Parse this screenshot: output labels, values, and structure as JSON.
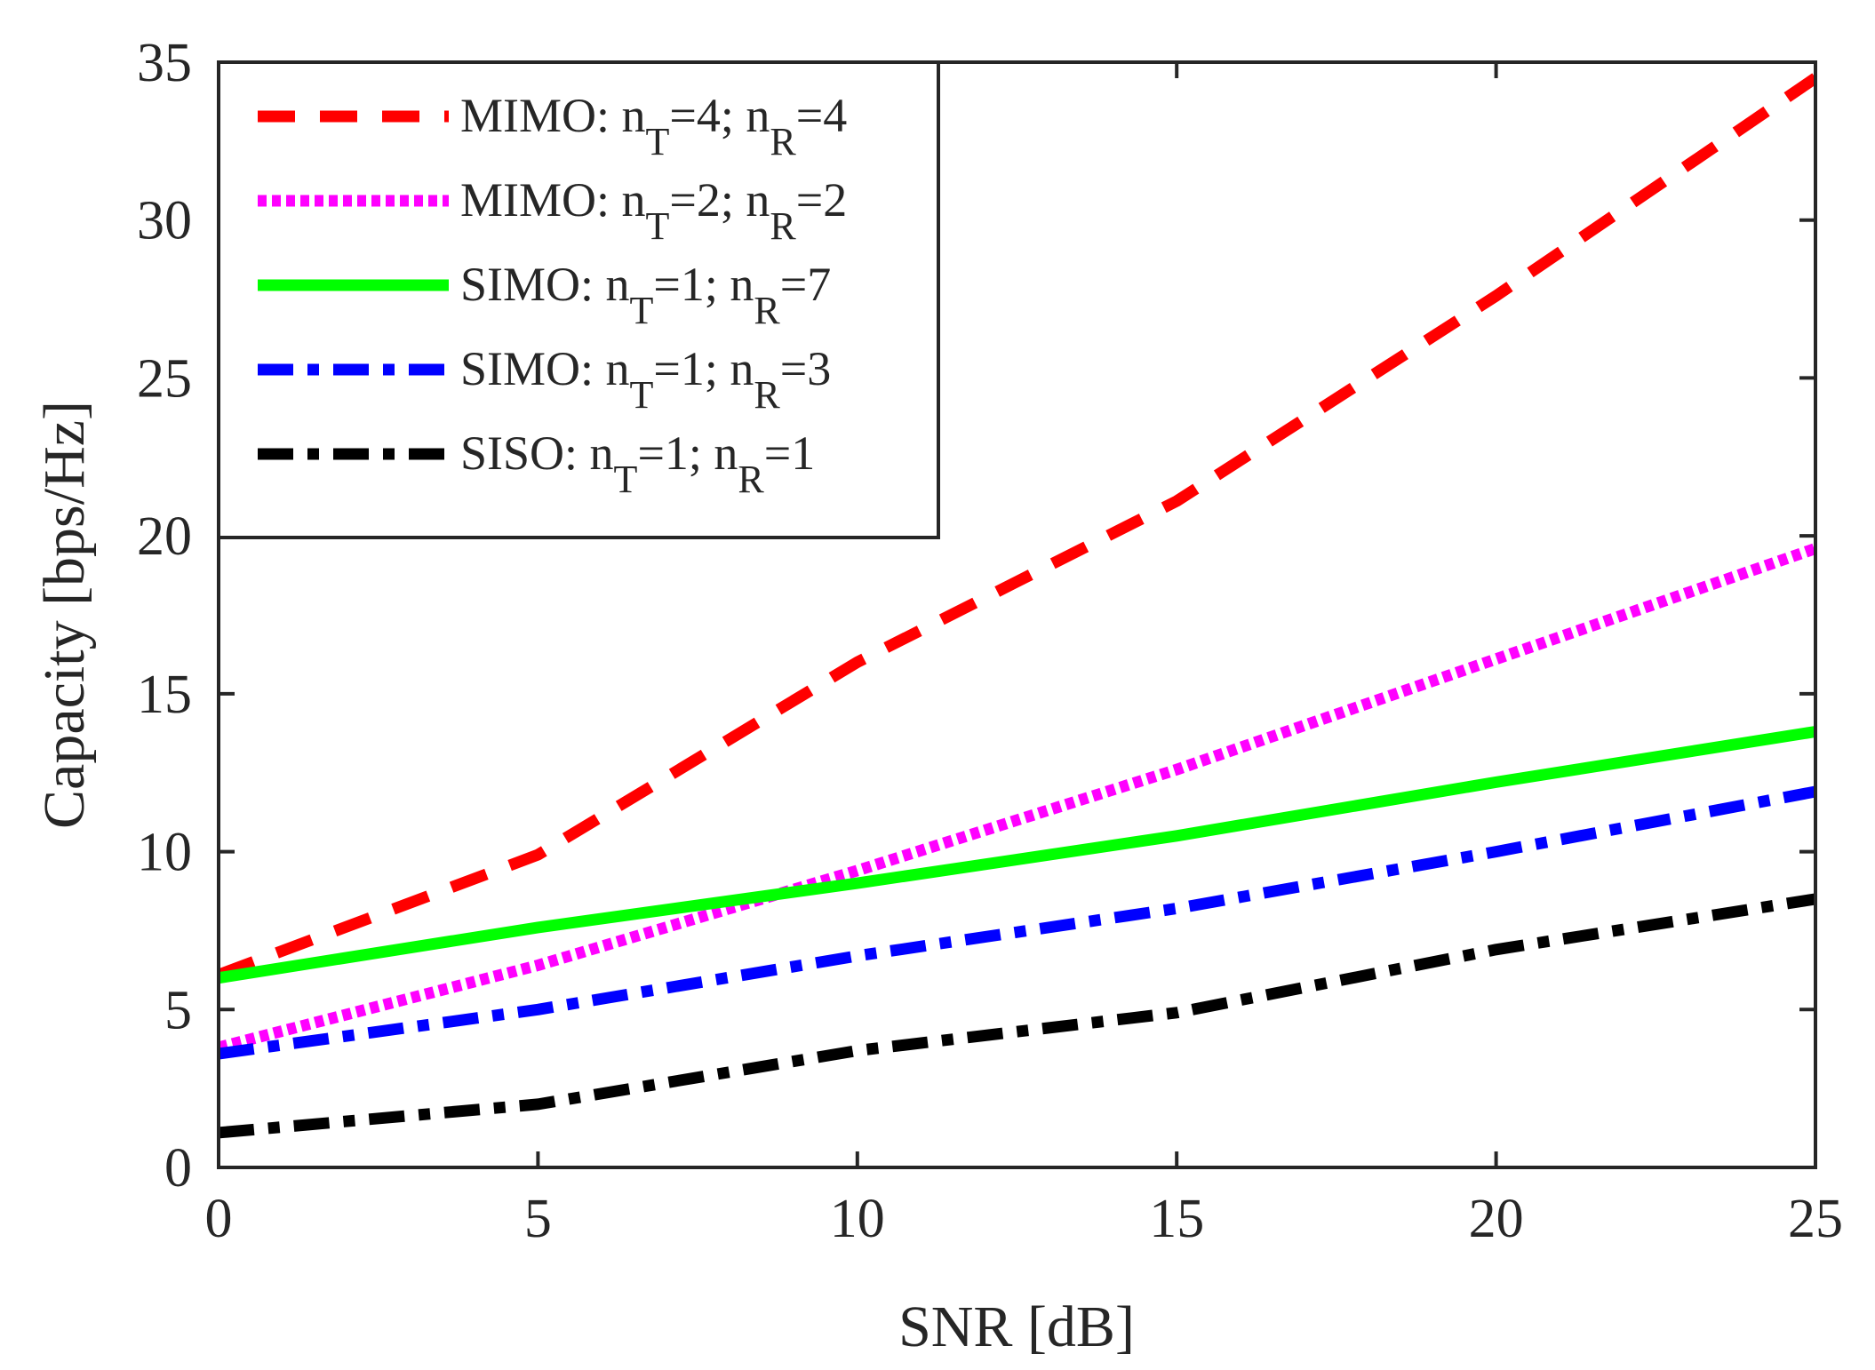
{
  "chart_data": {
    "type": "line",
    "title": "",
    "xlabel": "SNR [dB]",
    "ylabel": "Capacity [bps/Hz]",
    "xlim": [
      0,
      25
    ],
    "ylim": [
      0,
      35
    ],
    "xticks": [
      0,
      5,
      10,
      15,
      20,
      25
    ],
    "yticks": [
      0,
      5,
      10,
      15,
      20,
      25,
      30,
      35
    ],
    "grid": false,
    "legend_position": "top-left",
    "x": [
      0,
      5,
      10,
      15,
      20,
      25
    ],
    "series": [
      {
        "name": "MIMO: nT=4; nR=4",
        "label": {
          "prefix": "MIMO: ",
          "n1": "n",
          "s1": "T",
          "eq1": "=4; ",
          "n2": "n",
          "s2": "R",
          "eq2": "=4"
        },
        "color": "#ff0000",
        "style": "dashed",
        "values": [
          6.1,
          9.9,
          16.0,
          21.1,
          27.6,
          34.5
        ]
      },
      {
        "name": "MIMO: nT=2; nR=2",
        "label": {
          "prefix": "MIMO: ",
          "n1": "n",
          "s1": "T",
          "eq1": "=2; ",
          "n2": "n",
          "s2": "R",
          "eq2": "=2"
        },
        "color": "#ff00ff",
        "style": "dotted",
        "values": [
          3.8,
          6.4,
          9.4,
          12.6,
          16.1,
          19.6
        ]
      },
      {
        "name": "SIMO: nT=1; nR=7",
        "label": {
          "prefix": "SIMO: ",
          "n1": "n",
          "s1": "T",
          "eq1": "=1; ",
          "n2": "n",
          "s2": "R",
          "eq2": "=7"
        },
        "color": "#00ff00",
        "style": "solid",
        "values": [
          6.0,
          7.6,
          9.0,
          10.5,
          12.2,
          13.8
        ]
      },
      {
        "name": "SIMO: nT=1; nR=3",
        "label": {
          "prefix": "SIMO: ",
          "n1": "n",
          "s1": "T",
          "eq1": "=1; ",
          "n2": "n",
          "s2": "R",
          "eq2": "=3"
        },
        "color": "#0000ff",
        "style": "dashdot",
        "values": [
          3.6,
          5.0,
          6.7,
          8.2,
          10.0,
          11.9
        ]
      },
      {
        "name": "SISO: nT=1; nR=1",
        "label": {
          "prefix": "SISO: ",
          "n1": "n",
          "s1": "T",
          "eq1": "=1; ",
          "n2": "n",
          "s2": "R",
          "eq2": "=1"
        },
        "color": "#000000",
        "style": "dashdot",
        "values": [
          1.1,
          2.0,
          3.7,
          4.9,
          6.9,
          8.5
        ]
      }
    ]
  }
}
